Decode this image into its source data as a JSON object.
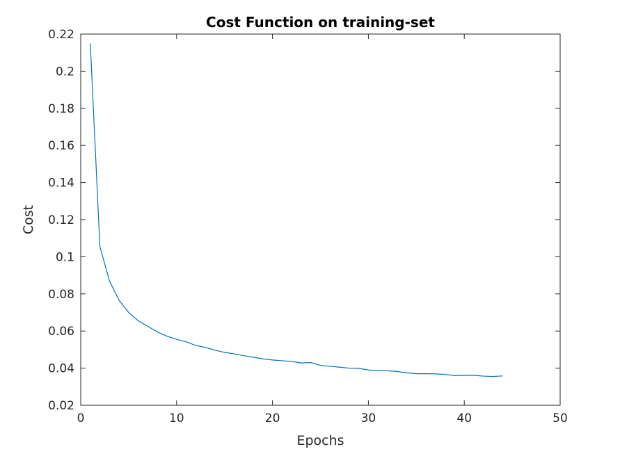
{
  "chart_data": {
    "type": "line",
    "title": "Cost Function on training-set",
    "xlabel": "Epochs",
    "ylabel": "Cost",
    "xlim": [
      0,
      50
    ],
    "ylim": [
      0.02,
      0.22
    ],
    "x_ticks": [
      "0",
      "10",
      "20",
      "30",
      "40",
      "50"
    ],
    "y_ticks": [
      "0.02",
      "0.04",
      "0.06",
      "0.08",
      "0.1",
      "0.12",
      "0.14",
      "0.16",
      "0.18",
      "0.2",
      "0.22"
    ],
    "grid": false,
    "series": [
      {
        "color": "#0072BD",
        "x": [
          1,
          2,
          3,
          4,
          5,
          6,
          7,
          8,
          9,
          10,
          11,
          12,
          13,
          14,
          15,
          16,
          17,
          18,
          19,
          20,
          21,
          22,
          23,
          24,
          25,
          26,
          27,
          28,
          29,
          30,
          31,
          32,
          33,
          34,
          35,
          36,
          37,
          38,
          39,
          40,
          41,
          42,
          43,
          44
        ],
        "y": [
          0.215,
          0.1055,
          0.087,
          0.0765,
          0.07,
          0.0655,
          0.0625,
          0.0595,
          0.0572,
          0.0555,
          0.0542,
          0.0522,
          0.0512,
          0.0497,
          0.0485,
          0.0477,
          0.0467,
          0.0459,
          0.045,
          0.0444,
          0.044,
          0.0436,
          0.0428,
          0.043,
          0.0415,
          0.041,
          0.0405,
          0.04,
          0.0399,
          0.039,
          0.0386,
          0.0386,
          0.0382,
          0.0375,
          0.037,
          0.037,
          0.0369,
          0.0366,
          0.036,
          0.0361,
          0.0361,
          0.0357,
          0.0355,
          0.0358
        ]
      }
    ]
  }
}
